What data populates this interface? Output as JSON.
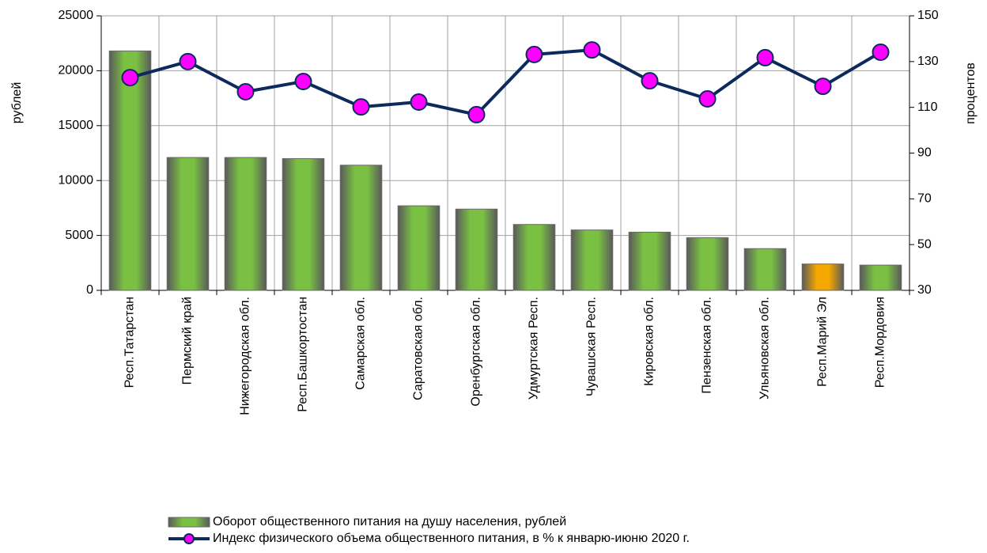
{
  "chart_data": {
    "type": "bar_line",
    "categories": [
      "Респ.Татарстан",
      "Пермский край",
      "Нижегородская обл.",
      "Респ.Башкортостан",
      "Самарская обл.",
      "Саратовская обл.",
      "Оренбургская обл.",
      "Удмуртская Респ.",
      "Чувашская Респ.",
      "Кировская обл.",
      "Пензенская обл.",
      "Ульяновская обл.",
      "Респ.Марий Эл",
      "Респ.Мордовия"
    ],
    "ylabel": "рублей",
    "y2label": "процентов",
    "ylim": [
      0,
      25000
    ],
    "yticks": [
      0,
      5000,
      10000,
      15000,
      20000,
      25000
    ],
    "y2lim": [
      30,
      150
    ],
    "y2ticks": [
      30,
      50,
      70,
      90,
      110,
      130,
      150
    ],
    "grid": true,
    "series": [
      {
        "name": "Оборот общественного питания на душу населения, рублей",
        "type": "bar",
        "color": "#7ac143",
        "colors": [
          "#7ac143",
          "#7ac143",
          "#7ac143",
          "#7ac143",
          "#7ac143",
          "#7ac143",
          "#7ac143",
          "#7ac143",
          "#7ac143",
          "#7ac143",
          "#7ac143",
          "#7ac143",
          "#f5a800",
          "#7ac143"
        ],
        "values": [
          21800,
          12100,
          12100,
          12000,
          11400,
          7700,
          7400,
          6000,
          5500,
          5300,
          4800,
          3800,
          2400,
          2300
        ]
      },
      {
        "name": "Индекс физического объема общественного питания, в % к январю-июню 2020 г.",
        "type": "line",
        "axis": "y2",
        "color": "#0d2a5c",
        "marker_color": "#ff00ff",
        "values": [
          123.0,
          130.0,
          116.8,
          121.3,
          110.2,
          112.3,
          106.8,
          133.1,
          135.1,
          121.6,
          113.7,
          131.7,
          119.2,
          134.1
        ]
      }
    ]
  }
}
